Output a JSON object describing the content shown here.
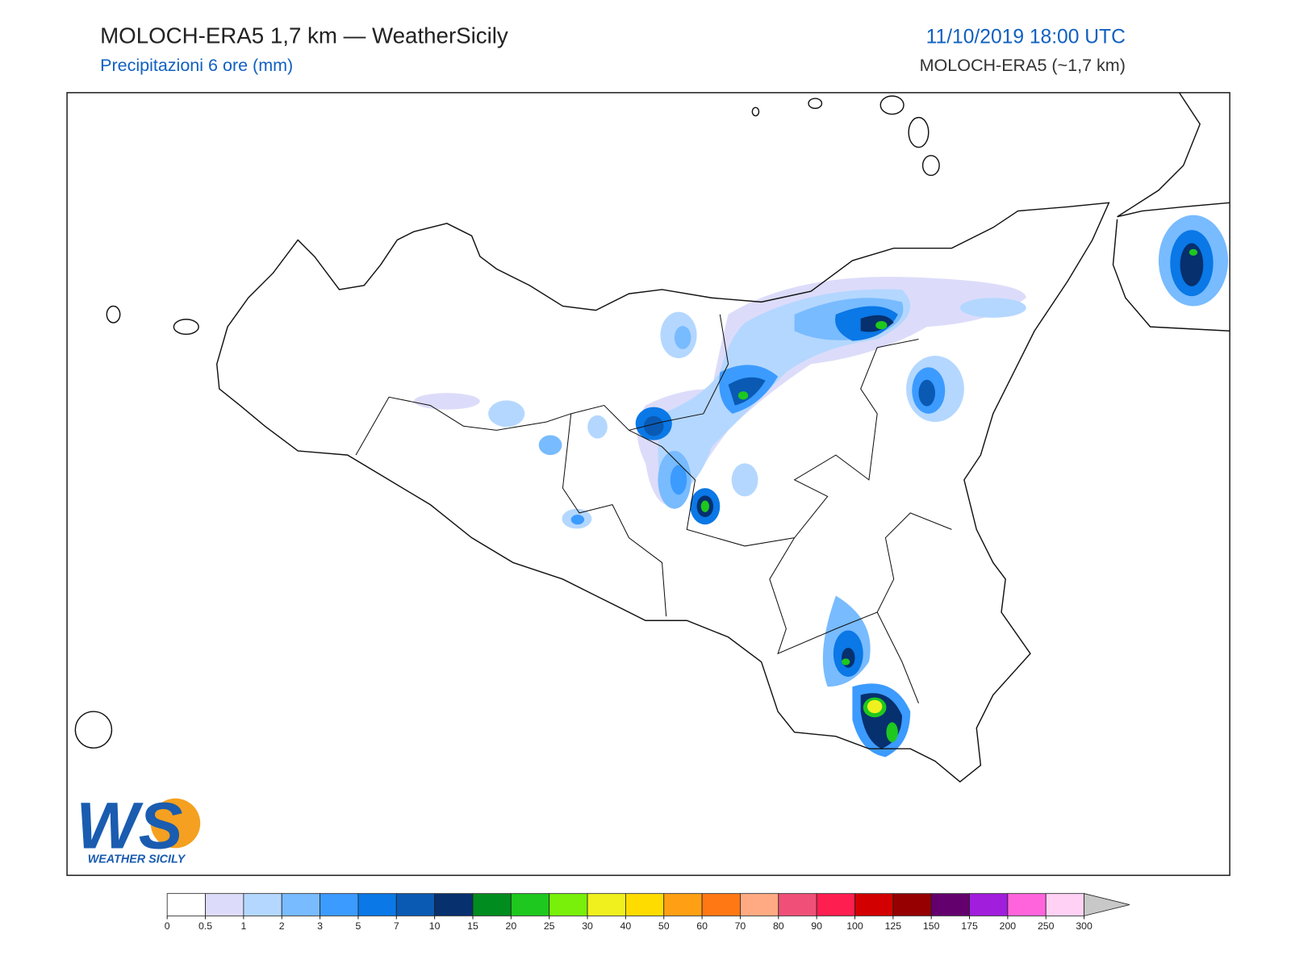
{
  "header": {
    "title": "MOLOCH-ERA5 1,7 km — WeatherSicily",
    "subtitle": "Precipitazioni 6 ore (mm)",
    "datetime": "11/10/2019 18:00 UTC",
    "model": "MOLOCH-ERA5 (~1,7 km)"
  },
  "logo": {
    "initials": "WS",
    "name": "WEATHER SICILY"
  },
  "colorbar": {
    "ticks": [
      0,
      0.5,
      1,
      2,
      3,
      5,
      7,
      10,
      15,
      20,
      25,
      30,
      40,
      50,
      60,
      70,
      80,
      90,
      100,
      125,
      150,
      175,
      200,
      250,
      300
    ],
    "colors": [
      "#ffffff",
      "#dcdcfa",
      "#b4d7ff",
      "#78bbff",
      "#3c9bff",
      "#0a78e6",
      "#0a5ab4",
      "#06306e",
      "#008c1e",
      "#1ec81e",
      "#78f00a",
      "#f0f01e",
      "#ffdc00",
      "#ffa014",
      "#ff7814",
      "#ffaa82",
      "#f05078",
      "#ff1e50",
      "#d20000",
      "#960000",
      "#64006e",
      "#a01edc",
      "#ff64dc",
      "#ffd2f5"
    ],
    "extend_color": "#c8c8c8"
  }
}
